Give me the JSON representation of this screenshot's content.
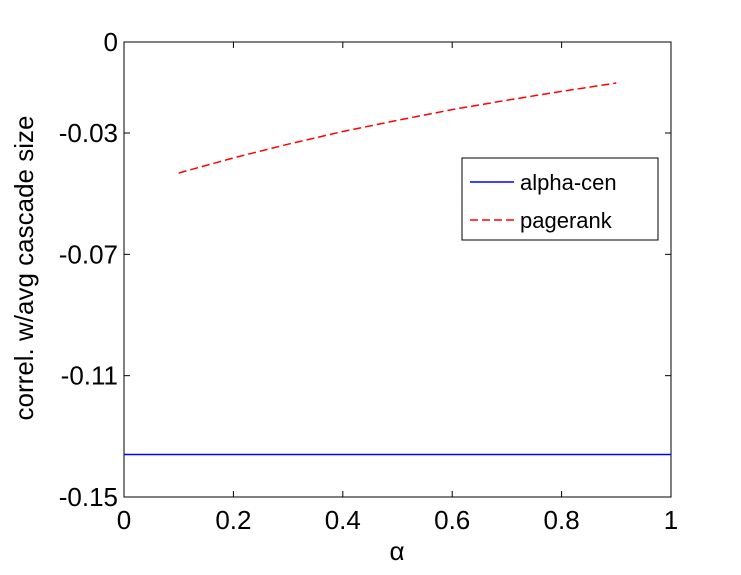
{
  "chart_data": {
    "type": "line",
    "xlabel": "α",
    "ylabel": "correl. w/avg cascade size",
    "xlim": [
      0,
      1
    ],
    "ylim": [
      -0.15,
      0
    ],
    "xticks": [
      0,
      0.2,
      0.4,
      0.6,
      0.8,
      1
    ],
    "xtick_labels": [
      "0",
      "0.2",
      "0.4",
      "0.6",
      "0.8",
      "1"
    ],
    "yticks": [
      0,
      -0.03,
      -0.07,
      -0.11,
      -0.15
    ],
    "ytick_labels": [
      "0",
      "-0.03",
      "-0.07",
      "-0.11",
      "-0.15"
    ],
    "grid": false,
    "legend_position": "upper-right",
    "series": [
      {
        "name": "alpha-cen",
        "color": "#0000ff",
        "style": "solid",
        "x": [
          0,
          1
        ],
        "y": [
          -0.136,
          -0.136
        ]
      },
      {
        "name": "pagerank",
        "color": "#ff0000",
        "style": "dashed",
        "x": [
          0.1,
          0.2,
          0.3,
          0.4,
          0.5,
          0.6,
          0.7,
          0.8,
          0.9
        ],
        "y": [
          -0.0432,
          -0.0382,
          -0.0337,
          -0.0295,
          -0.0258,
          -0.0223,
          -0.0192,
          -0.0163,
          -0.0135
        ]
      }
    ]
  }
}
